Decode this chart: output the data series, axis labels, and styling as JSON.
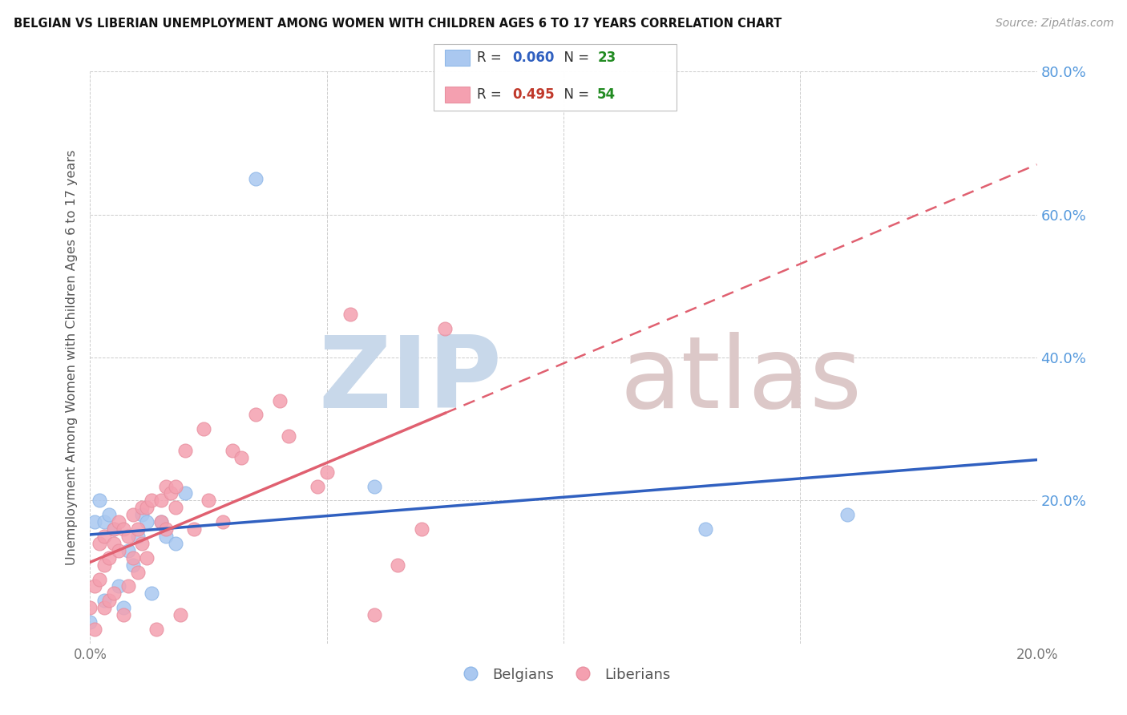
{
  "title": "BELGIAN VS LIBERIAN UNEMPLOYMENT AMONG WOMEN WITH CHILDREN AGES 6 TO 17 YEARS CORRELATION CHART",
  "source": "Source: ZipAtlas.com",
  "ylabel": "Unemployment Among Women with Children Ages 6 to 17 years",
  "xlim": [
    0.0,
    0.2
  ],
  "ylim": [
    0.0,
    0.8
  ],
  "belgian_color": "#aac8f0",
  "liberian_color": "#f4a0b0",
  "belgian_R": 0.06,
  "belgian_N": 23,
  "liberian_R": 0.495,
  "liberian_N": 54,
  "trend_belgian_color": "#3060c0",
  "trend_liberian_color": "#e06070",
  "background_color": "#ffffff",
  "grid_color": "#cccccc",
  "title_color": "#111111",
  "right_tick_color": "#5599dd",
  "belgians_x": [
    0.0,
    0.001,
    0.002,
    0.003,
    0.003,
    0.004,
    0.005,
    0.006,
    0.007,
    0.008,
    0.009,
    0.01,
    0.011,
    0.012,
    0.013,
    0.015,
    0.016,
    0.018,
    0.02,
    0.035,
    0.06,
    0.13,
    0.16
  ],
  "belgians_y": [
    0.03,
    0.17,
    0.2,
    0.17,
    0.06,
    0.18,
    0.16,
    0.08,
    0.05,
    0.13,
    0.11,
    0.15,
    0.18,
    0.17,
    0.07,
    0.17,
    0.15,
    0.14,
    0.21,
    0.65,
    0.22,
    0.16,
    0.18
  ],
  "liberians_x": [
    0.0,
    0.001,
    0.001,
    0.002,
    0.002,
    0.003,
    0.003,
    0.003,
    0.004,
    0.004,
    0.005,
    0.005,
    0.005,
    0.006,
    0.006,
    0.007,
    0.007,
    0.008,
    0.008,
    0.009,
    0.009,
    0.01,
    0.01,
    0.011,
    0.011,
    0.012,
    0.012,
    0.013,
    0.014,
    0.015,
    0.015,
    0.016,
    0.016,
    0.017,
    0.018,
    0.018,
    0.019,
    0.02,
    0.022,
    0.024,
    0.025,
    0.028,
    0.03,
    0.032,
    0.035,
    0.04,
    0.042,
    0.048,
    0.05,
    0.055,
    0.06,
    0.065,
    0.07,
    0.075
  ],
  "liberians_y": [
    0.05,
    0.02,
    0.08,
    0.09,
    0.14,
    0.11,
    0.05,
    0.15,
    0.06,
    0.12,
    0.07,
    0.14,
    0.16,
    0.13,
    0.17,
    0.04,
    0.16,
    0.08,
    0.15,
    0.18,
    0.12,
    0.1,
    0.16,
    0.19,
    0.14,
    0.12,
    0.19,
    0.2,
    0.02,
    0.17,
    0.2,
    0.16,
    0.22,
    0.21,
    0.19,
    0.22,
    0.04,
    0.27,
    0.16,
    0.3,
    0.2,
    0.17,
    0.27,
    0.26,
    0.32,
    0.34,
    0.29,
    0.22,
    0.24,
    0.46,
    0.04,
    0.11,
    0.16,
    0.44
  ]
}
